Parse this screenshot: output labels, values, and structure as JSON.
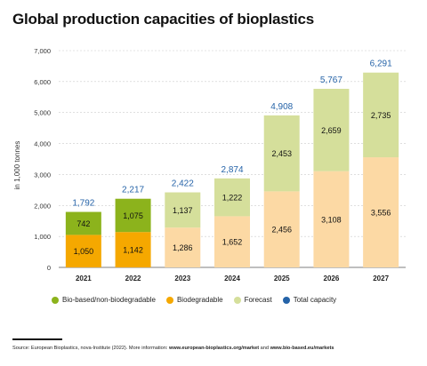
{
  "title": "Global production capacities of bioplastics",
  "chart_data": {
    "type": "bar",
    "stacked": true,
    "categories": [
      "2021",
      "2022",
      "2023",
      "2024",
      "2025",
      "2026",
      "2027"
    ],
    "forecast_from": "2023",
    "ylabel": "in 1,000 tonnes",
    "ylim": [
      0,
      7000
    ],
    "yticks": [
      "0",
      "1,000",
      "2,000",
      "3,000",
      "4,000",
      "5,000",
      "6,000",
      "7,000"
    ],
    "grid": true,
    "series": [
      {
        "name": "Biodegradable",
        "values": [
          1050,
          1142,
          1286,
          1652,
          2456,
          3108,
          3556
        ],
        "labels": [
          "1,050",
          "1,142",
          "1,286",
          "1,652",
          "2,456",
          "3,108",
          "3,556"
        ]
      },
      {
        "name": "Bio-based/non-biodegradable",
        "values": [
          742,
          1075,
          1137,
          1222,
          2453,
          2659,
          2735
        ],
        "labels": [
          "742",
          "1,075",
          "1,137",
          "1,222",
          "2,453",
          "2,659",
          "2,735"
        ]
      }
    ],
    "totals": [
      1792,
      2217,
      2422,
      2874,
      4908,
      5767,
      6291
    ],
    "total_labels": [
      "1,792",
      "2,217",
      "2,422",
      "2,874",
      "4,908",
      "5,767",
      "6,291"
    ],
    "legend_position": "bottom",
    "colors": {
      "biodegradable": "#f5a800",
      "biobased": "#8cb31c",
      "forecast_bottom": "#fcd9a4",
      "forecast_top": "#d5df9b",
      "total": "#2563a8"
    }
  },
  "legend": {
    "biobased": "Bio-based/non-biodegradable",
    "biodegradable": "Biodegradable",
    "forecast": "Forecast",
    "total": "Total capacity"
  },
  "source": {
    "prefix": "Source: European Bioplastics, nova-Institute (2022). More information: ",
    "link1": "www.european-bioplastics.org/market",
    "middle": " and ",
    "link2": "www.bio-based.eu/markets"
  }
}
